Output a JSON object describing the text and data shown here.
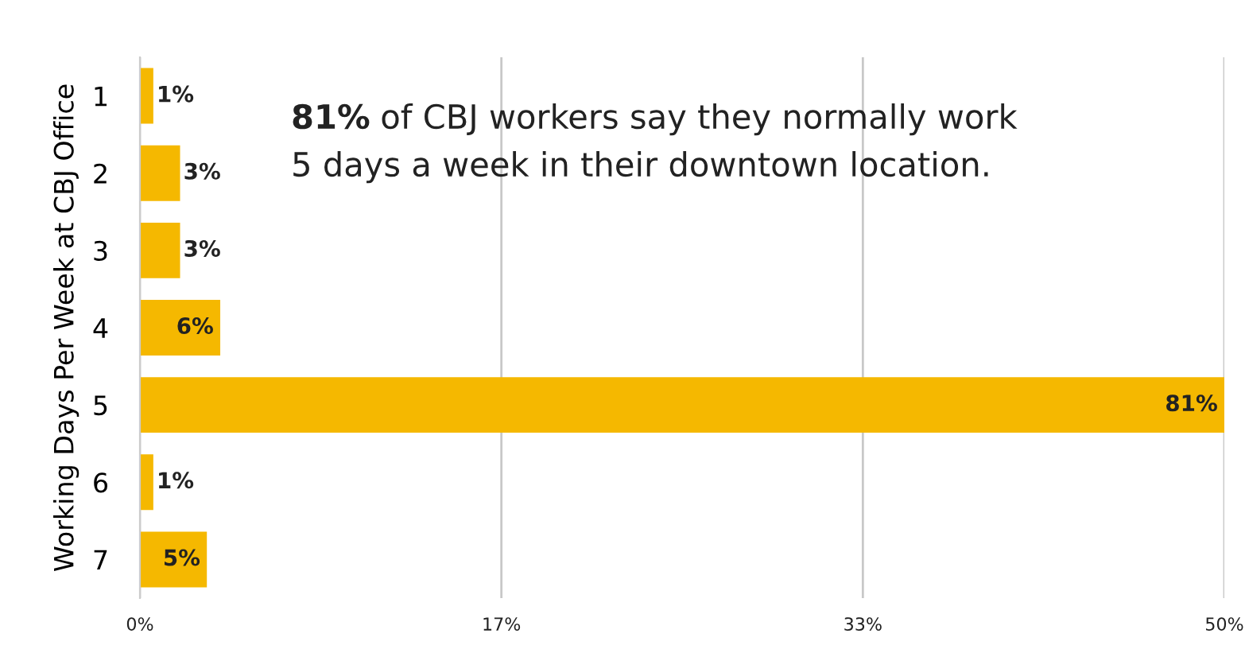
{
  "chart_data": {
    "type": "bar",
    "orientation": "horizontal",
    "categories": [
      "1",
      "2",
      "3",
      "4",
      "5",
      "6",
      "7"
    ],
    "values": [
      1,
      3,
      3,
      6,
      81,
      1,
      5
    ],
    "color": "#f5b800",
    "value_labels": [
      "1%",
      "3%",
      "3%",
      "6%",
      "81%",
      "1%",
      "5%"
    ],
    "ylabel": "Working Days Per Week at CBJ Office",
    "xlim": [
      0,
      81
    ],
    "xticks": [
      {
        "value": 0,
        "label": null
      },
      {
        "value": 27,
        "label": null
      },
      {
        "value": 54,
        "label": null
      },
      {
        "value": 81,
        "label": null
      }
    ],
    "grid": "x",
    "annotations": [
      "81% of CBJ workers say they normally work 5 days a week in their downtown location.",
      "0%",
      "17%",
      "33%",
      "50%"
    ]
  }
}
